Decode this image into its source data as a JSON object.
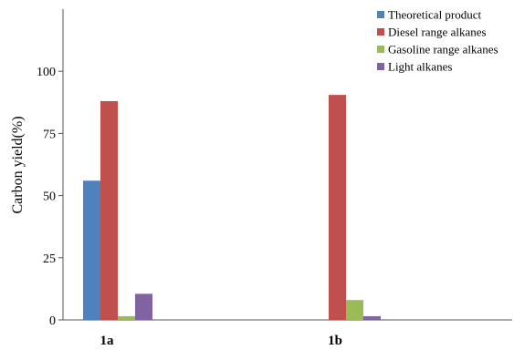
{
  "chart_data": {
    "type": "bar",
    "title": "",
    "xlabel": "",
    "ylabel": "Carbon yield(%)",
    "ylim": [
      0,
      125
    ],
    "yticks": [
      0,
      25,
      50,
      75,
      100
    ],
    "categories": [
      "1a",
      "1b"
    ],
    "series": [
      {
        "name": "Theoretical product",
        "color": "#4f81bd",
        "values": [
          56,
          0
        ]
      },
      {
        "name": "Diesel range alkanes",
        "color": "#c0504d",
        "values": [
          88,
          90.5
        ]
      },
      {
        "name": "Gasoline range alkanes",
        "color": "#9bbb59",
        "values": [
          1.5,
          8
        ]
      },
      {
        "name": "Light alkanes",
        "color": "#8064a2",
        "values": [
          10.5,
          1.5
        ]
      }
    ],
    "grid": false,
    "legend_position": "top-right"
  }
}
